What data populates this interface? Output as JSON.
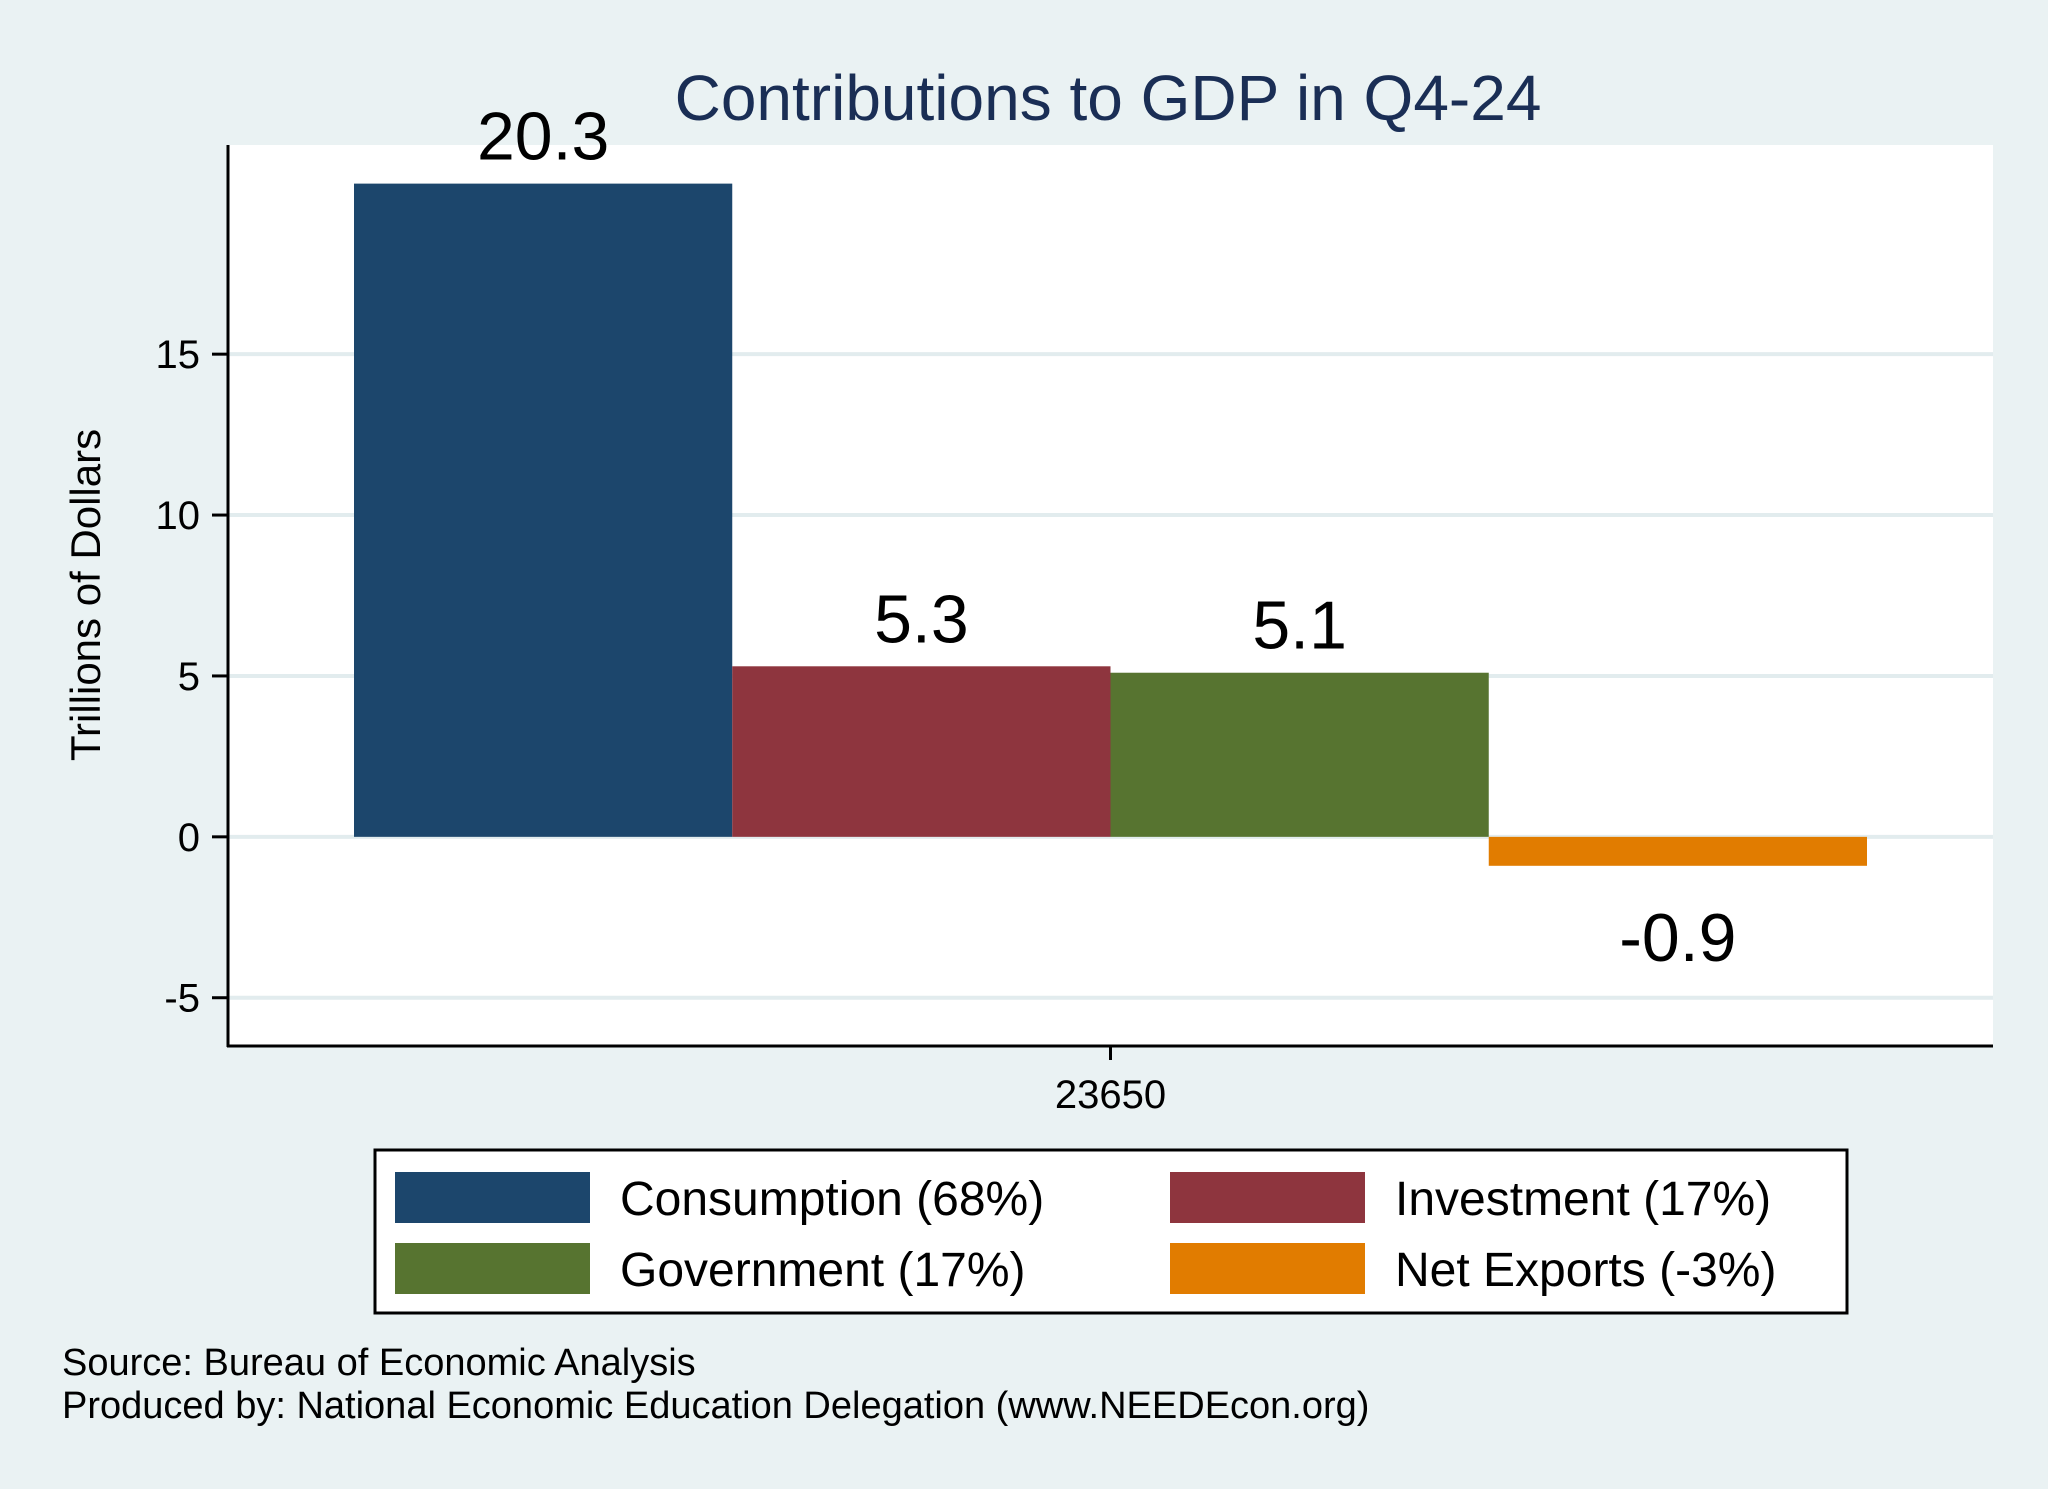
{
  "chart_data": {
    "type": "bar",
    "title": "Contributions to GDP in Q4-24",
    "xlabel": "",
    "ylabel": "Trillions of Dollars",
    "categories": [
      "23650"
    ],
    "series": [
      {
        "name": "Consumption (68%)",
        "values": [
          20.3
        ],
        "label": "20.3",
        "color": "#1c466c"
      },
      {
        "name": "Investment (17%)",
        "values": [
          5.3
        ],
        "label": "5.3",
        "color": "#8e353e"
      },
      {
        "name": "Government (17%)",
        "values": [
          5.1
        ],
        "label": "5.1",
        "color": "#577430"
      },
      {
        "name": "Net Exports (-3%)",
        "values": [
          -0.9
        ],
        "label": "-0.9",
        "color": "#e17c00"
      }
    ],
    "yticks": [
      -5,
      0,
      5,
      10,
      15
    ],
    "ytick_labels": [
      "-5",
      "0",
      "5",
      "10",
      "15"
    ],
    "ylim": [
      -6.5,
      21.5
    ],
    "grid": true,
    "legend_position": "bottom",
    "data_labels": true
  },
  "notes": {
    "source": "Source: Bureau of Economic Analysis",
    "produced": "Produced by: National Economic Education Delegation (www.NEEDEcon.org)"
  },
  "colors": {
    "background": "#eaf2f3",
    "plot_background": "#ffffff",
    "grid": "#e2ecee",
    "title": "#1a2e55"
  }
}
